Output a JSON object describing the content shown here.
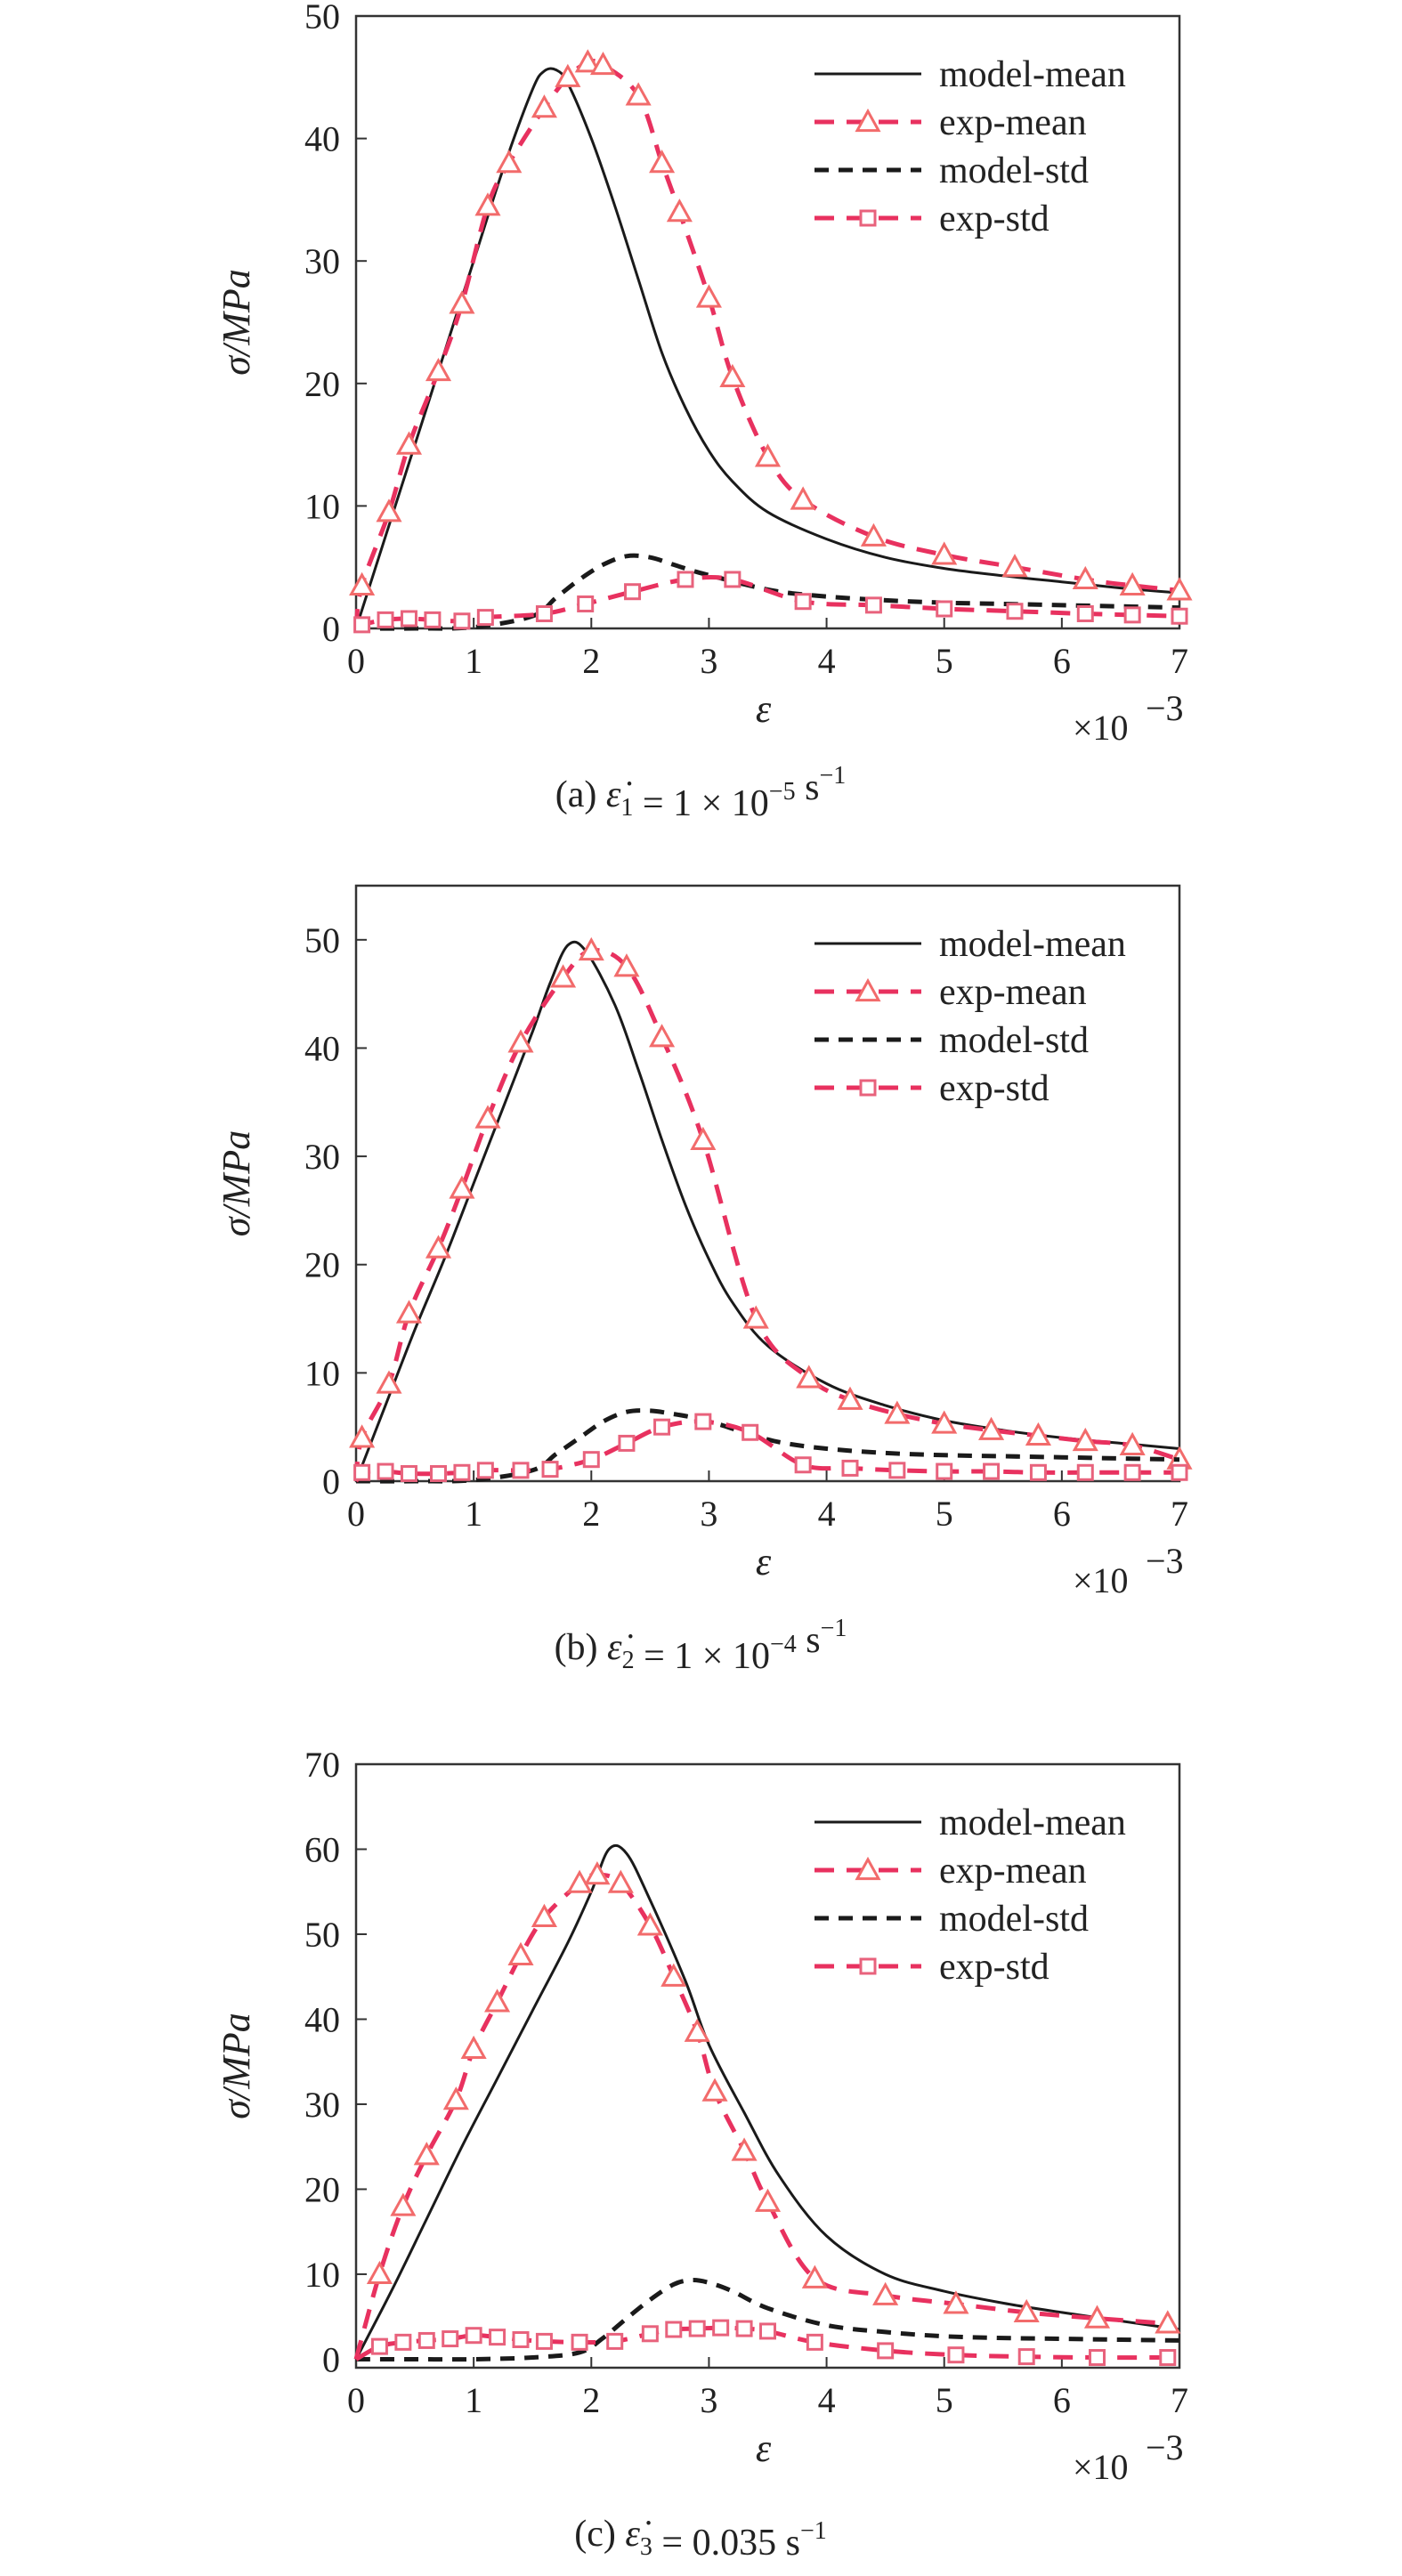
{
  "colors": {
    "model": "#1a1a1a",
    "exp": "#e8315f",
    "exp_mean_marker": "#f26b6b",
    "exp_std_marker": "#e8627c"
  },
  "icons": {
    "exp_mean_marker": "triangle-marker",
    "exp_std_marker": "square-marker"
  },
  "chart_data": [
    {
      "type": "line",
      "caption_label": "(a)",
      "caption_rate": "1 × 10",
      "caption_exp": "−5",
      "caption_unit": "s",
      "caption_unit_exp": "−1",
      "caption_symbol_sub": "1",
      "xlabel": "ε",
      "ylabel": "σ/MPa",
      "x_multiplier": "×10",
      "x_multiplier_exp": "−3",
      "xlim": [
        0,
        7
      ],
      "ylim": [
        0,
        50
      ],
      "xticks": [
        0,
        1,
        2,
        3,
        4,
        5,
        6,
        7
      ],
      "yticks": [
        0,
        10,
        20,
        30,
        40,
        50
      ],
      "legend_position": "top-right",
      "series": [
        {
          "name": "model-mean",
          "style": "solid-black",
          "x": [
            0,
            0.25,
            0.5,
            0.75,
            1.0,
            1.25,
            1.5,
            1.6,
            1.7,
            1.8,
            2.0,
            2.2,
            2.4,
            2.6,
            2.8,
            3.0,
            3.2,
            3.5,
            4.0,
            4.5,
            5.0,
            5.5,
            6.0,
            6.5,
            7.0
          ],
          "y": [
            0,
            7.5,
            15,
            22.5,
            30,
            37.5,
            44,
            45.5,
            45.6,
            44.5,
            40,
            34.5,
            28.5,
            22.5,
            18,
            14.5,
            12,
            9.5,
            7.3,
            5.8,
            4.9,
            4.3,
            3.8,
            3.3,
            2.9
          ]
        },
        {
          "name": "exp-mean",
          "style": "dashed-red-triangle",
          "x": [
            0,
            0.05,
            0.28,
            0.45,
            0.7,
            0.9,
            1.12,
            1.3,
            1.6,
            1.8,
            1.97,
            2.1,
            2.4,
            2.6,
            2.75,
            3.0,
            3.2,
            3.5,
            3.8,
            4.4,
            5.0,
            5.6,
            6.2,
            6.6,
            7.0
          ],
          "y": [
            0,
            3.5,
            9.5,
            15,
            21,
            26.5,
            34.5,
            38,
            42.5,
            45,
            46.2,
            46,
            43.5,
            38,
            34,
            27,
            20.5,
            14,
            10.5,
            7.5,
            6,
            5,
            4,
            3.5,
            3.1
          ]
        },
        {
          "name": "model-std",
          "style": "dashed-black",
          "x": [
            0,
            0.5,
            1.0,
            1.5,
            1.7,
            1.9,
            2.1,
            2.3,
            2.5,
            2.7,
            2.9,
            3.1,
            3.3,
            3.6,
            4.0,
            4.5,
            5.0,
            5.5,
            6.0,
            6.5,
            7.0
          ],
          "y": [
            0,
            0,
            0.1,
            1.0,
            2.5,
            4.0,
            5.2,
            5.9,
            5.8,
            5.2,
            4.6,
            4.1,
            3.6,
            3.0,
            2.6,
            2.3,
            2.1,
            2.0,
            1.9,
            1.8,
            1.7
          ]
        },
        {
          "name": "exp-std",
          "style": "dashed-red-square",
          "x": [
            0,
            0.05,
            0.25,
            0.45,
            0.65,
            0.9,
            1.1,
            1.6,
            1.95,
            2.35,
            2.8,
            3.2,
            3.8,
            4.4,
            5.0,
            5.6,
            6.2,
            6.6,
            7.0
          ],
          "y": [
            0,
            0.3,
            0.7,
            0.8,
            0.7,
            0.6,
            0.9,
            1.2,
            2.0,
            3.0,
            4.0,
            4.0,
            2.2,
            1.9,
            1.6,
            1.4,
            1.2,
            1.1,
            1.0
          ]
        }
      ]
    },
    {
      "type": "line",
      "caption_label": "(b)",
      "caption_rate": "1 × 10",
      "caption_exp": "−4",
      "caption_unit": "s",
      "caption_unit_exp": "−1",
      "caption_symbol_sub": "2",
      "xlabel": "ε",
      "ylabel": "σ/MPa",
      "x_multiplier": "×10",
      "x_multiplier_exp": "−3",
      "xlim": [
        0,
        7
      ],
      "ylim": [
        0,
        55
      ],
      "xticks": [
        0,
        1,
        2,
        3,
        4,
        5,
        6,
        7
      ],
      "yticks": [
        0,
        10,
        20,
        30,
        40,
        50
      ],
      "legend_position": "top-right",
      "series": [
        {
          "name": "model-mean",
          "style": "solid-black",
          "x": [
            0,
            0.25,
            0.5,
            0.75,
            1.0,
            1.25,
            1.5,
            1.65,
            1.8,
            1.95,
            2.2,
            2.4,
            2.6,
            2.8,
            3.0,
            3.2,
            3.5,
            4.0,
            4.5,
            5.0,
            5.5,
            6.0,
            6.5,
            7.0
          ],
          "y": [
            0,
            7,
            14,
            20.5,
            27.5,
            34.5,
            41.5,
            46,
            49.5,
            49,
            44,
            38,
            31.5,
            25.5,
            20.5,
            16.5,
            12.5,
            9,
            7,
            5.6,
            4.7,
            4,
            3.5,
            3.0
          ]
        },
        {
          "name": "exp-mean",
          "style": "dashed-red-triangle",
          "x": [
            0,
            0.05,
            0.28,
            0.45,
            0.7,
            0.9,
            1.12,
            1.4,
            1.76,
            2.0,
            2.3,
            2.6,
            2.95,
            3.4,
            3.85,
            4.2,
            4.6,
            5.0,
            5.4,
            5.8,
            6.2,
            6.6,
            7.0
          ],
          "y": [
            0,
            4,
            9,
            15.5,
            21.5,
            27,
            33.5,
            40.5,
            46.5,
            49,
            47.5,
            41,
            31.5,
            15,
            9.5,
            7.5,
            6.2,
            5.3,
            4.7,
            4.2,
            3.7,
            3.3,
            2.0
          ]
        },
        {
          "name": "model-std",
          "style": "dashed-black",
          "x": [
            0,
            0.5,
            1.0,
            1.5,
            1.7,
            1.9,
            2.1,
            2.3,
            2.5,
            2.7,
            2.9,
            3.1,
            3.3,
            3.6,
            4.0,
            4.5,
            5.0,
            5.5,
            6.0,
            6.5,
            7.0
          ],
          "y": [
            0,
            0,
            0.1,
            1.0,
            2.5,
            4.0,
            5.5,
            6.4,
            6.5,
            6.2,
            5.8,
            5.2,
            4.5,
            3.6,
            3.0,
            2.6,
            2.4,
            2.3,
            2.2,
            2.1,
            2.0
          ]
        },
        {
          "name": "exp-std",
          "style": "dashed-red-square",
          "x": [
            0,
            0.05,
            0.25,
            0.45,
            0.7,
            0.9,
            1.1,
            1.4,
            1.65,
            2.0,
            2.3,
            2.6,
            2.95,
            3.35,
            3.8,
            4.2,
            4.6,
            5.0,
            5.4,
            5.8,
            6.2,
            6.6,
            7.0
          ],
          "y": [
            0,
            0.8,
            0.9,
            0.7,
            0.7,
            0.8,
            1.0,
            1.0,
            1.1,
            2.0,
            3.5,
            5.0,
            5.5,
            4.5,
            1.5,
            1.2,
            1.0,
            0.9,
            0.9,
            0.8,
            0.8,
            0.8,
            0.8
          ]
        }
      ]
    },
    {
      "type": "line",
      "caption_label": "(c)",
      "caption_rate": "0.035",
      "caption_exp": "",
      "caption_unit": "s",
      "caption_unit_exp": "−1",
      "caption_symbol_sub": "3",
      "xlabel": "ε",
      "ylabel": "σ/MPa",
      "x_multiplier": "×10",
      "x_multiplier_exp": "−3",
      "xlim": [
        0,
        7
      ],
      "ylim": [
        -1,
        70
      ],
      "xticks": [
        0,
        1,
        2,
        3,
        4,
        5,
        6,
        7
      ],
      "yticks": [
        0,
        10,
        20,
        30,
        40,
        50,
        60,
        70
      ],
      "legend_position": "top-right",
      "series": [
        {
          "name": "model-mean",
          "style": "solid-black",
          "x": [
            0,
            0.3,
            0.6,
            0.9,
            1.2,
            1.5,
            1.8,
            2.0,
            2.15,
            2.3,
            2.5,
            2.8,
            3.0,
            3.3,
            3.6,
            4.0,
            4.5,
            5.0,
            5.5,
            6.0,
            6.5,
            7.0
          ],
          "y": [
            0,
            8,
            16.5,
            25,
            33,
            41,
            49,
            55,
            60,
            59.5,
            54,
            44.5,
            37,
            29,
            21.5,
            14.5,
            10,
            8,
            6.6,
            5.5,
            4.5,
            3.5
          ]
        },
        {
          "name": "exp-mean",
          "style": "dashed-red-triangle",
          "x": [
            0,
            0.2,
            0.4,
            0.6,
            0.85,
            1.0,
            1.2,
            1.4,
            1.6,
            1.9,
            2.05,
            2.25,
            2.5,
            2.7,
            2.9,
            3.05,
            3.3,
            3.5,
            3.9,
            4.5,
            5.1,
            5.7,
            6.3,
            6.9
          ],
          "y": [
            0,
            10,
            18,
            24,
            30.5,
            36.5,
            42,
            47.5,
            52,
            56,
            57,
            56,
            51,
            45,
            38.5,
            31.5,
            24.5,
            18.5,
            9.5,
            7.5,
            6.5,
            5.5,
            4.8,
            4.2
          ]
        },
        {
          "name": "model-std",
          "style": "dashed-black",
          "x": [
            0,
            0.5,
            1.0,
            1.5,
            1.9,
            2.1,
            2.3,
            2.5,
            2.7,
            2.85,
            3.0,
            3.2,
            3.5,
            4.0,
            4.5,
            5.0,
            5.5,
            6.0,
            6.5,
            7.0
          ],
          "y": [
            0,
            0,
            0,
            0.2,
            0.8,
            2.5,
            4.8,
            7.0,
            8.8,
            9.3,
            9.0,
            8.0,
            6.0,
            4.0,
            3.2,
            2.7,
            2.5,
            2.4,
            2.3,
            2.2
          ]
        },
        {
          "name": "exp-std",
          "style": "dashed-red-square",
          "x": [
            0,
            0.2,
            0.4,
            0.6,
            0.8,
            1.0,
            1.2,
            1.4,
            1.6,
            1.9,
            2.2,
            2.5,
            2.7,
            2.9,
            3.1,
            3.3,
            3.5,
            3.9,
            4.5,
            5.1,
            5.7,
            6.3,
            6.9
          ],
          "y": [
            0,
            1.5,
            2.0,
            2.2,
            2.4,
            2.8,
            2.6,
            2.3,
            2.1,
            2.0,
            2.1,
            3.0,
            3.5,
            3.6,
            3.7,
            3.6,
            3.3,
            2.0,
            1.0,
            0.5,
            0.3,
            0.2,
            0.2
          ]
        }
      ]
    }
  ]
}
